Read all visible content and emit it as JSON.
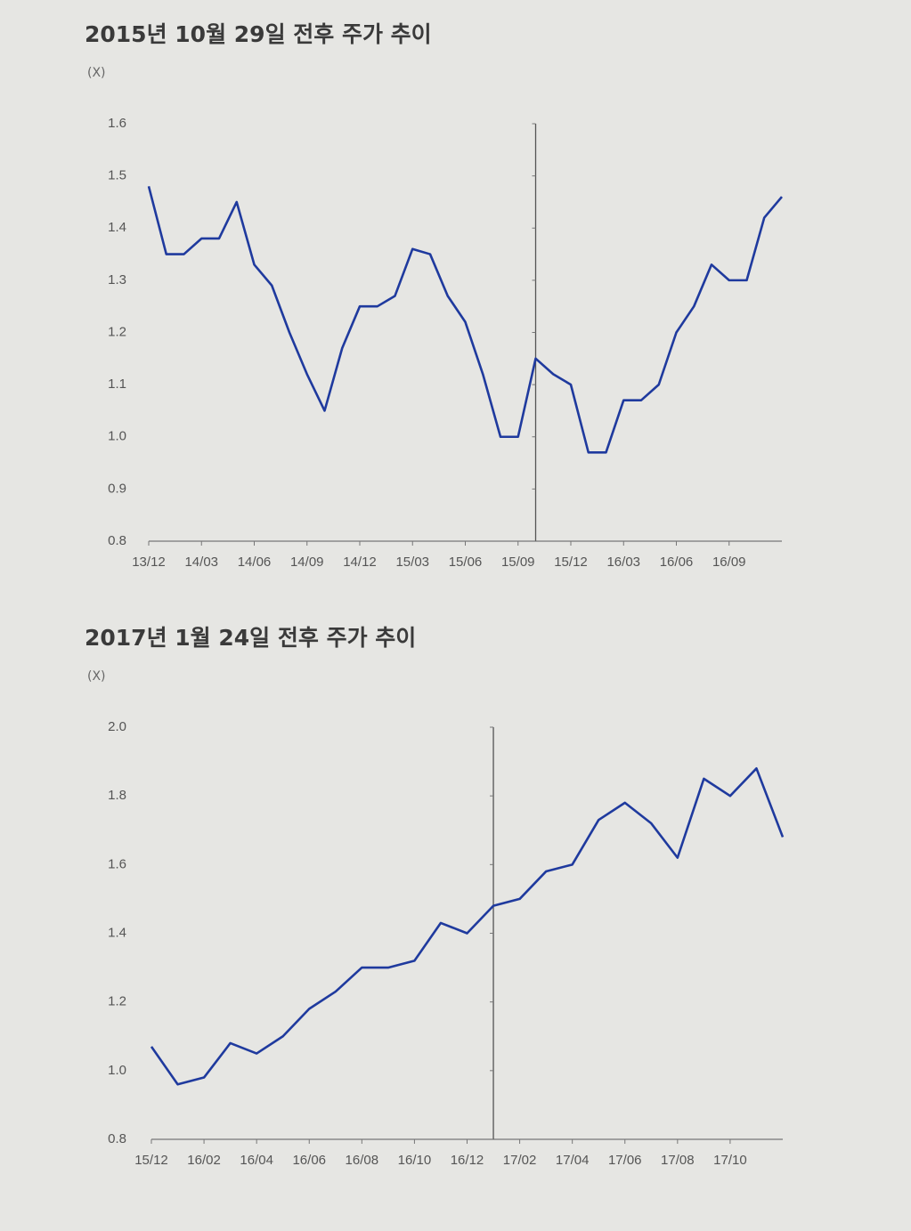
{
  "chart_data": [
    {
      "type": "line",
      "title": "2015년 10월 29일 전후 주가 추이",
      "y_unit": "(X)",
      "x": [
        "13/12",
        "14/01",
        "14/02",
        "14/03",
        "14/04",
        "14/05",
        "14/06",
        "14/07",
        "14/08",
        "14/09",
        "14/10",
        "14/11",
        "14/12",
        "15/01",
        "15/02",
        "15/03",
        "15/04",
        "15/05",
        "15/06",
        "15/07",
        "15/08",
        "15/09",
        "15/10",
        "15/11",
        "15/12",
        "16/01",
        "16/02",
        "16/03",
        "16/04",
        "16/05",
        "16/06",
        "16/07",
        "16/08",
        "16/09",
        "16/10",
        "16/11",
        "16/12"
      ],
      "series": [
        {
          "color": "#1f3a9e",
          "values": [
            1.48,
            1.35,
            1.35,
            1.38,
            1.38,
            1.45,
            1.33,
            1.29,
            1.2,
            1.12,
            1.05,
            1.17,
            1.25,
            1.25,
            1.27,
            1.36,
            1.35,
            1.27,
            1.22,
            1.12,
            1.0,
            1.0,
            1.15,
            1.12,
            1.1,
            0.97,
            0.97,
            1.07,
            1.07,
            1.1,
            1.2,
            1.25,
            1.33,
            1.3,
            1.3,
            1.42,
            1.46
          ]
        }
      ],
      "xticks": [
        "13/12",
        "14/03",
        "14/06",
        "14/09",
        "14/12",
        "15/03",
        "15/06",
        "15/09",
        "15/12",
        "16/03",
        "16/06",
        "16/09"
      ],
      "ylim": [
        0.8,
        1.6
      ],
      "yticks": [
        0.8,
        0.9,
        {
          "value": 1,
          "label": "1.0"
        },
        1.1,
        1.2,
        1.3,
        1.4,
        1.5,
        1.6
      ],
      "vline_x": "15/10"
    },
    {
      "type": "line",
      "title": "2017년 1월 24일 전후 주가 추이",
      "y_unit": "(X)",
      "x": [
        "15/12",
        "16/01",
        "16/02",
        "16/03",
        "16/04",
        "16/05",
        "16/06",
        "16/07",
        "16/08",
        "16/09",
        "16/10",
        "16/11",
        "16/12",
        "17/01",
        "17/02",
        "17/03",
        "17/04",
        "17/05",
        "17/06",
        "17/07",
        "17/08",
        "17/09",
        "17/10",
        "17/11",
        "17/12"
      ],
      "series": [
        {
          "color": "#1f3a9e",
          "values": [
            1.07,
            0.96,
            0.98,
            1.08,
            1.05,
            1.1,
            1.18,
            1.23,
            1.3,
            1.3,
            1.32,
            1.43,
            1.4,
            1.48,
            1.5,
            1.58,
            1.6,
            1.73,
            1.78,
            1.72,
            1.62,
            1.85,
            1.8,
            1.88,
            1.68
          ]
        }
      ],
      "xticks": [
        "15/12",
        "16/02",
        "16/04",
        "16/06",
        "16/08",
        "16/10",
        "16/12",
        "17/02",
        "17/04",
        "17/06",
        "17/08",
        "17/10"
      ],
      "ylim": [
        0.8,
        2.0
      ],
      "yticks": [
        0.8,
        {
          "value": 1,
          "label": "1.0"
        },
        1.2,
        1.4,
        1.6,
        1.8,
        {
          "value": 2,
          "label": "2.0"
        }
      ],
      "vline_x": "17/01"
    }
  ]
}
